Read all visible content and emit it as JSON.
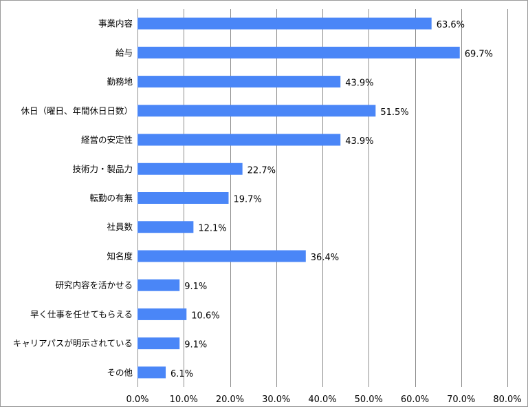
{
  "chart_data": {
    "type": "bar",
    "orientation": "horizontal",
    "categories": [
      "事業内容",
      "給与",
      "勤務地",
      "休日（曜日、年間休日日数）",
      "経営の安定性",
      "技術力・製品力",
      "転勤の有無",
      "社員数",
      "知名度",
      "研究内容を活かせる",
      "早く仕事を任せてもらえる",
      "キャリアパスが明示されている",
      "その他"
    ],
    "values": [
      63.6,
      69.7,
      43.9,
      51.5,
      43.9,
      22.7,
      19.7,
      12.1,
      36.4,
      9.1,
      10.6,
      9.1,
      6.1
    ],
    "value_labels": [
      "63.6%",
      "69.7%",
      "43.9%",
      "51.5%",
      "43.9%",
      "22.7%",
      "19.7%",
      "12.1%",
      "36.4%",
      "9.1%",
      "10.6%",
      "9.1%",
      "6.1%"
    ],
    "xlim": [
      0,
      80
    ],
    "x_ticks": [
      "0.0%",
      "10.0%",
      "20.0%",
      "30.0%",
      "40.0%",
      "50.0%",
      "60.0%",
      "70.0%",
      "80.0%"
    ],
    "grid": true,
    "bar_color": "#4a86f7",
    "grid_color": "#8c8c8c"
  }
}
